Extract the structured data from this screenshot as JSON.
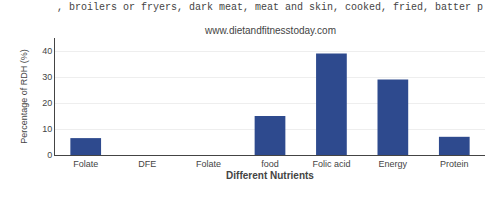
{
  "chart_data": {
    "type": "bar",
    "title": ", broilers or fryers, dark meat, meat and skin, cooked, fried, batter p",
    "subtitle": "www.dietandfitnesstoday.com",
    "categories": [
      "Folate",
      "DFE",
      "Folate",
      "food",
      "Folic acid",
      "Energy",
      "Protein"
    ],
    "values": [
      6.5,
      0.0,
      0.0,
      15.0,
      39.0,
      29.0,
      7.0
    ],
    "color": "#2e4a8e",
    "xlabel": "Different Nutrients",
    "ylabel": "Percentage of RDH (%)",
    "ylim": [
      0,
      45
    ],
    "yticks": [
      0,
      10,
      20,
      30,
      40
    ],
    "grid": true
  }
}
